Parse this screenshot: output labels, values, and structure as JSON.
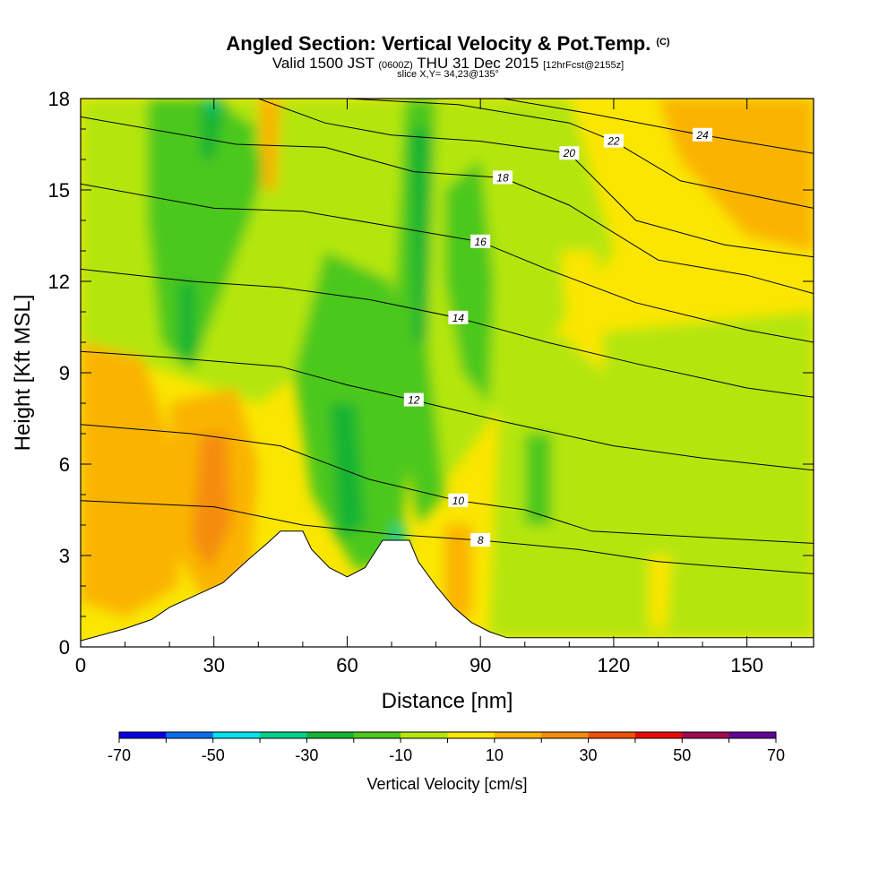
{
  "title": "Angled Section: Vertical Velocity & Pot.Temp.",
  "title_mark": "(C)",
  "subtitle_a": "Valid 1500 JST",
  "subtitle_b": "(0600Z)",
  "subtitle_c": "THU 31 Dec 2015",
  "subtitle_d": "[12hrFcst@2155z]",
  "slice_label": "slice X,Y= 34,23@135°",
  "chart_data": {
    "type": "heatmap",
    "xlabel": "Distance [nm]",
    "ylabel": "Height [Kft MSL]",
    "xlim": [
      0,
      165
    ],
    "ylim": [
      0,
      18
    ],
    "x_ticks": [
      0,
      30,
      60,
      90,
      120,
      150
    ],
    "y_ticks": [
      0,
      3,
      6,
      9,
      12,
      15,
      18
    ],
    "colorbar": {
      "label": "Vertical Velocity [cm/s]",
      "tick_values": [
        -70,
        -50,
        -30,
        -10,
        10,
        30,
        50,
        70
      ],
      "colors": [
        "#0a00e6",
        "#0a6ef0",
        "#00e0f0",
        "#00d08c",
        "#14b432",
        "#4cc81e",
        "#b4e60a",
        "#fae600",
        "#fab400",
        "#f58c0a",
        "#f0500a",
        "#e60a0a",
        "#a00a50",
        "#640096"
      ]
    },
    "terrain": [
      [
        0,
        0.2
      ],
      [
        10,
        0.6
      ],
      [
        16,
        0.9
      ],
      [
        20,
        1.3
      ],
      [
        26,
        1.7
      ],
      [
        32,
        2.1
      ],
      [
        38,
        2.9
      ],
      [
        42,
        3.4
      ],
      [
        45,
        3.8
      ],
      [
        50,
        3.8
      ],
      [
        52,
        3.2
      ],
      [
        56,
        2.6
      ],
      [
        60,
        2.3
      ],
      [
        64,
        2.6
      ],
      [
        68,
        3.5
      ],
      [
        74,
        3.5
      ],
      [
        76,
        2.8
      ],
      [
        80,
        2.0
      ],
      [
        84,
        1.3
      ],
      [
        88,
        0.8
      ],
      [
        92,
        0.5
      ],
      [
        96,
        0.3
      ],
      [
        165,
        0.3
      ]
    ],
    "isentropes": [
      {
        "label": "8",
        "pts": [
          [
            0,
            4.8
          ],
          [
            30,
            4.6
          ],
          [
            50,
            4.0
          ],
          [
            70,
            3.7
          ],
          [
            90,
            3.5
          ],
          [
            112,
            3.2
          ],
          [
            130,
            2.8
          ],
          [
            165,
            2.4
          ]
        ]
      },
      {
        "label": "10",
        "pts": [
          [
            0,
            7.3
          ],
          [
            25,
            7.0
          ],
          [
            45,
            6.6
          ],
          [
            65,
            5.5
          ],
          [
            85,
            4.8
          ],
          [
            100,
            4.5
          ],
          [
            115,
            3.8
          ],
          [
            140,
            3.6
          ],
          [
            165,
            3.4
          ]
        ]
      },
      {
        "label": "12",
        "pts": [
          [
            0,
            9.7
          ],
          [
            20,
            9.5
          ],
          [
            45,
            9.2
          ],
          [
            60,
            8.6
          ],
          [
            75,
            8.1
          ],
          [
            95,
            7.4
          ],
          [
            120,
            6.6
          ],
          [
            140,
            6.2
          ],
          [
            165,
            5.8
          ]
        ]
      },
      {
        "label": "14",
        "pts": [
          [
            0,
            12.4
          ],
          [
            25,
            12.0
          ],
          [
            45,
            11.8
          ],
          [
            65,
            11.4
          ],
          [
            85,
            10.8
          ],
          [
            105,
            10.0
          ],
          [
            125,
            9.3
          ],
          [
            150,
            8.5
          ],
          [
            165,
            8.2
          ]
        ]
      },
      {
        "label": "16",
        "pts": [
          [
            0,
            15.2
          ],
          [
            30,
            14.4
          ],
          [
            50,
            14.3
          ],
          [
            70,
            13.8
          ],
          [
            90,
            13.3
          ],
          [
            105,
            12.4
          ],
          [
            125,
            11.3
          ],
          [
            150,
            10.4
          ],
          [
            165,
            10.0
          ]
        ]
      },
      {
        "label": "18",
        "pts": [
          [
            0,
            17.4
          ],
          [
            35,
            16.5
          ],
          [
            55,
            16.4
          ],
          [
            75,
            15.6
          ],
          [
            95,
            15.4
          ],
          [
            110,
            14.5
          ],
          [
            130,
            12.7
          ],
          [
            150,
            12.2
          ],
          [
            165,
            11.6
          ]
        ]
      },
      {
        "label": "20",
        "pts": [
          [
            40,
            18.0
          ],
          [
            55,
            17.2
          ],
          [
            70,
            16.8
          ],
          [
            90,
            16.6
          ],
          [
            110,
            16.2
          ],
          [
            125,
            14.0
          ],
          [
            145,
            13.2
          ],
          [
            165,
            12.8
          ]
        ]
      },
      {
        "label": "22",
        "pts": [
          [
            60,
            18.0
          ],
          [
            85,
            17.8
          ],
          [
            110,
            17.2
          ],
          [
            120,
            16.6
          ],
          [
            135,
            15.3
          ],
          [
            165,
            14.4
          ]
        ]
      },
      {
        "label": "24",
        "pts": [
          [
            95,
            18.0
          ],
          [
            115,
            17.5
          ],
          [
            140,
            16.8
          ],
          [
            165,
            16.2
          ]
        ]
      }
    ]
  }
}
